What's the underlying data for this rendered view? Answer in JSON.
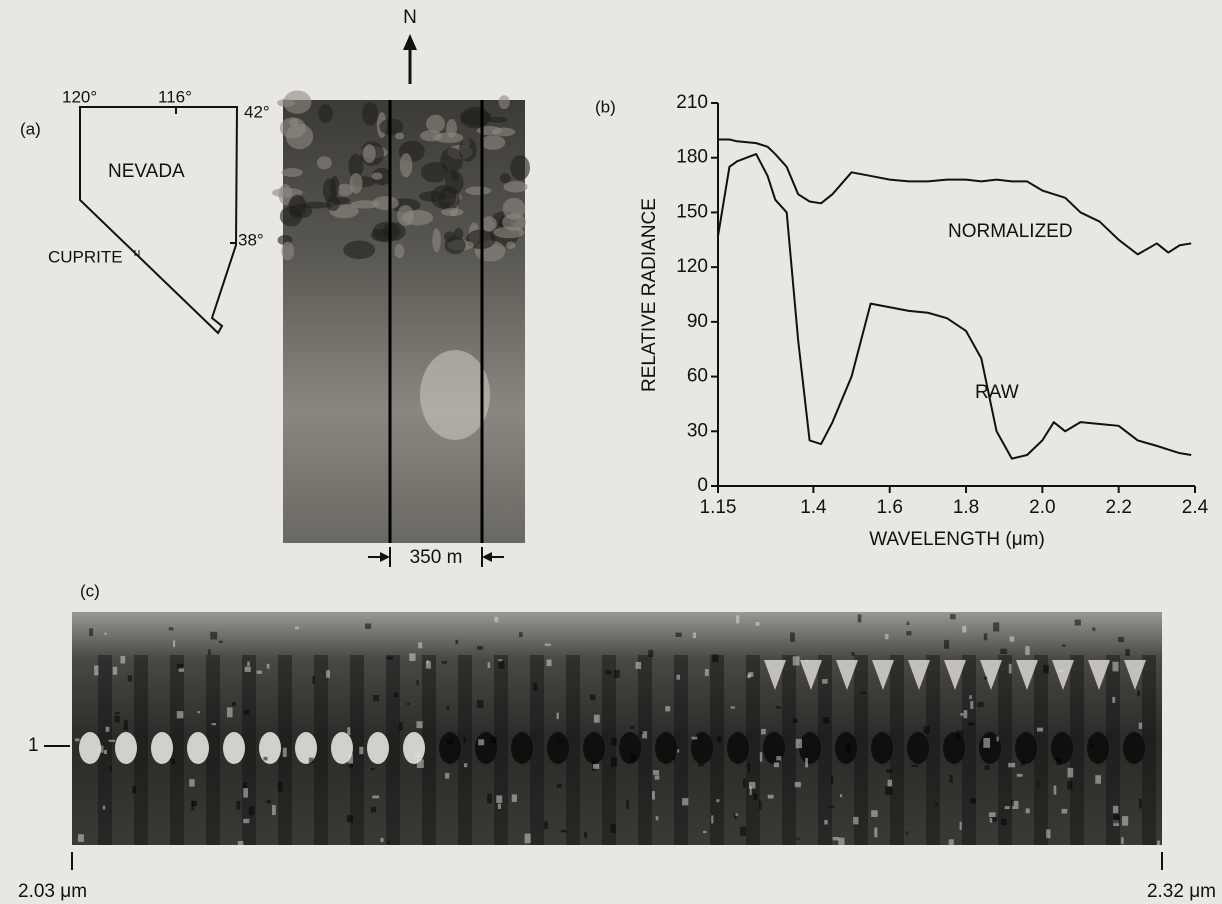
{
  "panel_a": {
    "label": "(a)",
    "lon_west": "120°",
    "lon_mid": "116°",
    "lat_north": "42°",
    "state": "NEVADA",
    "site": "CUPRITE",
    "lat_south": "38°",
    "north": "N",
    "scale": "350 m"
  },
  "panel_c": {
    "label": "(c)",
    "marker": "1",
    "start": "2.03 μm",
    "end": "2.32 μm"
  },
  "chart_data": {
    "type": "line",
    "panel_label": "(b)",
    "x_label": "WAVELENGTH (μm)",
    "y_label": "RELATIVE RADIANCE",
    "x": [
      1.15,
      1.18,
      1.2,
      1.25,
      1.28,
      1.3,
      1.33,
      1.36,
      1.39,
      1.42,
      1.45,
      1.5,
      1.55,
      1.6,
      1.65,
      1.7,
      1.75,
      1.8,
      1.84,
      1.88,
      1.92,
      1.96,
      2.0,
      2.03,
      2.06,
      2.1,
      2.15,
      2.2,
      2.25,
      2.3,
      2.33,
      2.36,
      2.39
    ],
    "series": [
      {
        "name": "NORMALIZED",
        "color": "#111111",
        "values": [
          190,
          190,
          189,
          188,
          186,
          182,
          175,
          160,
          156,
          155,
          160,
          172,
          170,
          168,
          167,
          167,
          168,
          168,
          167,
          168,
          167,
          167,
          162,
          160,
          158,
          150,
          145,
          135,
          127,
          133,
          128,
          132,
          133
        ]
      },
      {
        "name": "RAW",
        "color": "#111111",
        "values": [
          137,
          175,
          178,
          182,
          170,
          157,
          150,
          80,
          25,
          23,
          35,
          60,
          100,
          98,
          96,
          95,
          92,
          85,
          70,
          30,
          15,
          17,
          25,
          35,
          30,
          35,
          34,
          33,
          25,
          22,
          20,
          18,
          17
        ]
      }
    ],
    "xlim": [
      1.15,
      2.4
    ],
    "ylim": [
      0,
      210
    ],
    "xticks": [
      1.15,
      1.4,
      1.6,
      1.8,
      {
        "value": 2,
        "label": "2.0"
      },
      2.2,
      2.4
    ],
    "yticks": [
      0,
      30,
      60,
      90,
      120,
      150,
      180,
      210
    ]
  }
}
